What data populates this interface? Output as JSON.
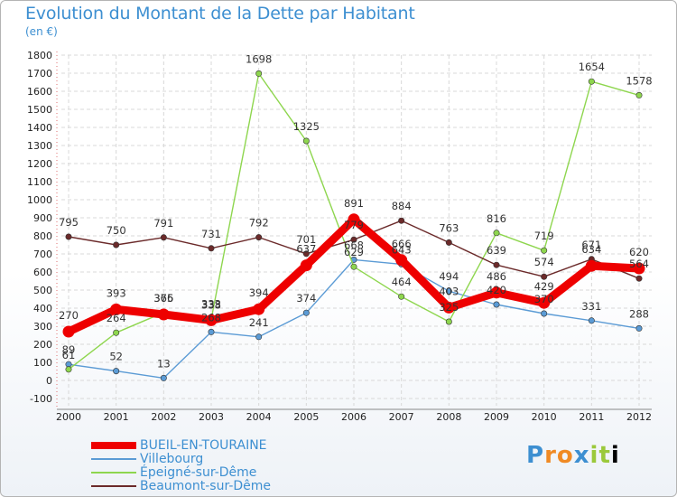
{
  "title": "Evolution du Montant de la Dette par Habitant",
  "unit": "(en €)",
  "logo": "Proxiti",
  "colors": {
    "grid": "#d8d8d8",
    "axis": "#e07070",
    "title": "#3d8fd1"
  },
  "chart_data": {
    "type": "line",
    "title": "Evolution du Montant de la Dette par Habitant",
    "subtitle": "(en €)",
    "xlabel": "",
    "ylabel": "",
    "ylim": [
      -100,
      1800
    ],
    "yticks": [
      -100,
      0,
      100,
      200,
      300,
      400,
      500,
      600,
      700,
      800,
      900,
      1000,
      1100,
      1200,
      1300,
      1400,
      1500,
      1600,
      1700,
      1800
    ],
    "categories": [
      "2000",
      "2001",
      "2002",
      "2003",
      "2004",
      "2005",
      "2006",
      "2007",
      "2008",
      "2009",
      "2010",
      "2011",
      "2012"
    ],
    "grid": true,
    "legend_position": "bottom-left",
    "series": [
      {
        "name": "BUEIL-EN-TOURAINE",
        "color": "#ee0000",
        "values": [
          270,
          393,
          365,
          333,
          394,
          637,
          891,
          666,
          403,
          486,
          429,
          634,
          620
        ]
      },
      {
        "name": "Villebourg",
        "color": "#5b9bd5",
        "values": [
          89,
          52,
          13,
          268,
          241,
          374,
          668,
          643,
          494,
          420,
          370,
          331,
          288
        ]
      },
      {
        "name": "Épeigné-sur-Dême",
        "color": "#8ed64e",
        "values": [
          61,
          264,
          376,
          338,
          1698,
          1325,
          629,
          464,
          325,
          816,
          719,
          1654,
          1578
        ]
      },
      {
        "name": "Beaumont-sur-Dême",
        "color": "#6b2a2a",
        "values": [
          795,
          750,
          791,
          731,
          792,
          701,
          779,
          884,
          763,
          639,
          574,
          671,
          564
        ]
      }
    ]
  }
}
